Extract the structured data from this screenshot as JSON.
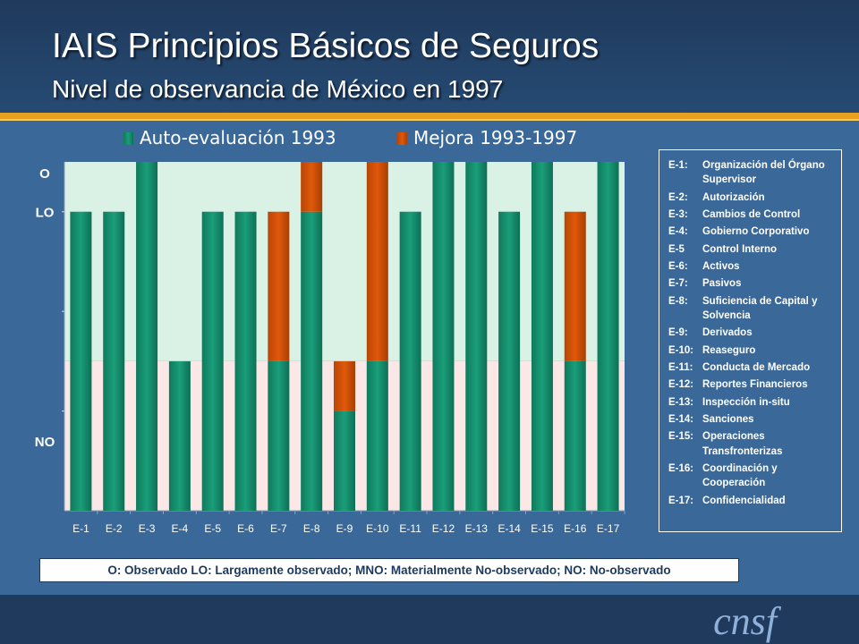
{
  "header": {
    "title": "IAIS Principios Básicos de Seguros",
    "subtitle": "Nivel de observancia de México en 1997"
  },
  "colors": {
    "base": "#1a9e7a",
    "improvement": "#e0580a",
    "band_upper": "#daf1e6",
    "band_lower": "#fbe8e6",
    "accent": "#e8a020"
  },
  "chart_data": {
    "type": "bar",
    "stacked": true,
    "categories": [
      "E-1",
      "E-2",
      "E-3",
      "E-4",
      "E-5",
      "E-6",
      "E-7",
      "E-8",
      "E-9",
      "E-10",
      "E-11",
      "E-12",
      "E-13",
      "E-14",
      "E-15",
      "E-16",
      "E-17"
    ],
    "series": [
      {
        "name": "Auto-evaluación 1993",
        "values": [
          3.0,
          3.0,
          3.5,
          1.5,
          3.0,
          3.0,
          1.5,
          3.0,
          1.0,
          1.5,
          3.0,
          3.5,
          3.5,
          3.0,
          3.5,
          1.5,
          3.5
        ]
      },
      {
        "name": "Mejora 1993-1997",
        "values": [
          0,
          0,
          0,
          0,
          0,
          0,
          1.5,
          0.5,
          0.5,
          2.0,
          0,
          0,
          0,
          0,
          0,
          1.5,
          0
        ]
      }
    ],
    "y_levels": [
      {
        "label": "O",
        "value": 3.5
      },
      {
        "label": "LO",
        "value": 3.0
      },
      {
        "label": "NO",
        "value": 0.7
      }
    ],
    "ylim": [
      0,
      3.5
    ],
    "legend_position": "top"
  },
  "glossary": [
    {
      "code": "E-1:",
      "desc": "Organización del Órgano Supervisor"
    },
    {
      "code": "E-2:",
      "desc": "Autorización"
    },
    {
      "code": "E-3:",
      "desc": "Cambios de Control"
    },
    {
      "code": "E-4:",
      "desc": "Gobierno Corporativo"
    },
    {
      "code": "E-5",
      "desc": "Control Interno"
    },
    {
      "code": "E-6:",
      "desc": "Activos"
    },
    {
      "code": "E-7:",
      "desc": "Pasivos"
    },
    {
      "code": "E-8:",
      "desc": "Suficiencia de Capital y Solvencia"
    },
    {
      "code": "E-9:",
      "desc": "Derivados"
    },
    {
      "code": "E-10:",
      "desc": "Reaseguro"
    },
    {
      "code": "E-11:",
      "desc": "Conducta de Mercado"
    },
    {
      "code": "E-12:",
      "desc": "Reportes Financieros"
    },
    {
      "code": "E-13:",
      "desc": "Inspección in-situ"
    },
    {
      "code": "E-14:",
      "desc": "Sanciones"
    },
    {
      "code": "E-15:",
      "desc": "Operaciones Transfronterizas"
    },
    {
      "code": "E-16:",
      "desc": "Coordinación y Cooperación"
    },
    {
      "code": "E-17:",
      "desc": "Confidencialidad"
    }
  ],
  "footnote": "O: Observado  LO: Largamente observado;  MNO: Materialmente No-observado;  NO: No-observado",
  "logo": "cnsf"
}
